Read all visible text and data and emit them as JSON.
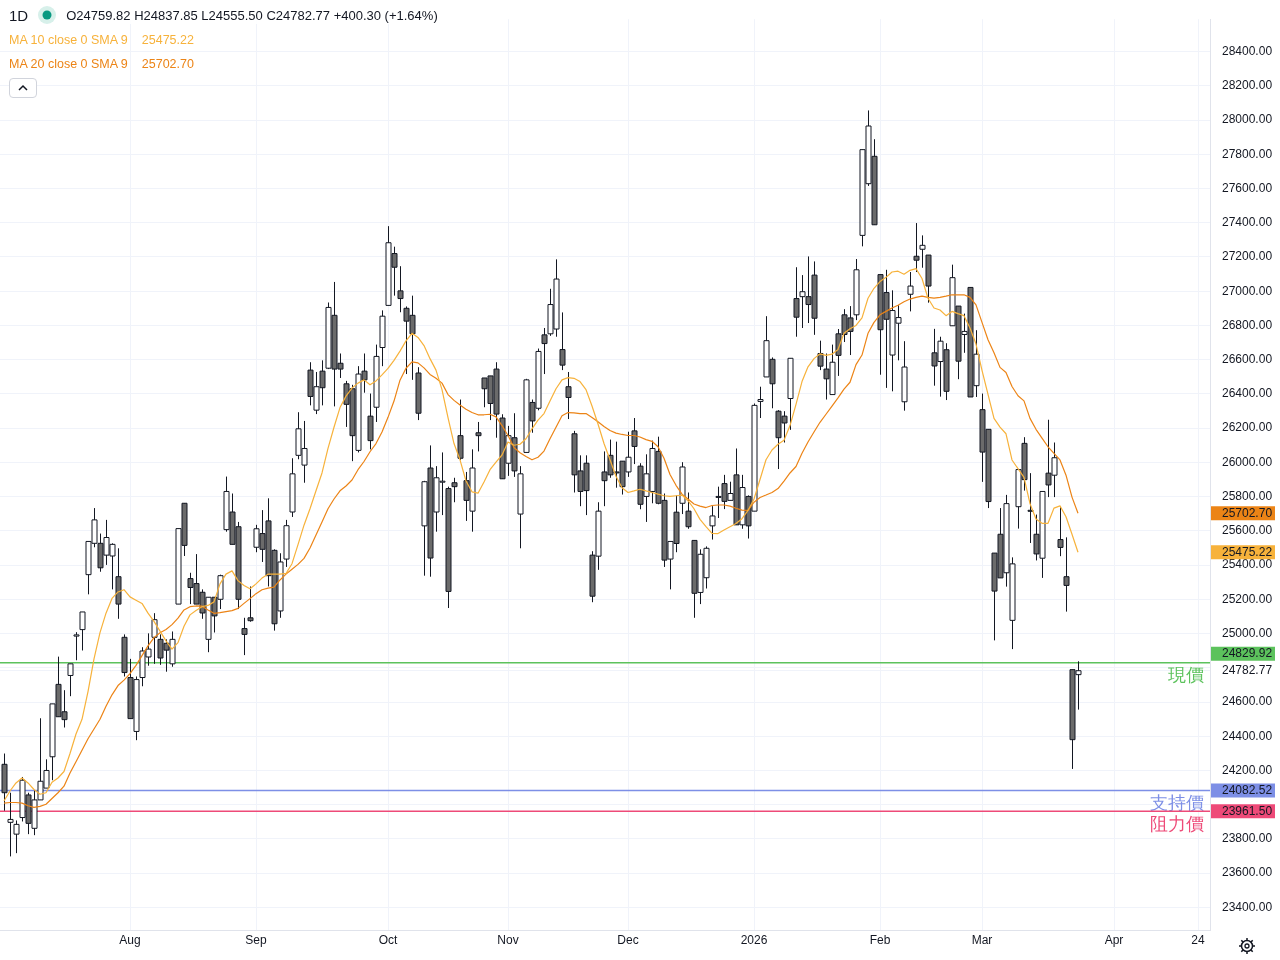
{
  "chart_data": {
    "type": "candlestick",
    "title": "1D",
    "subtitle": "O24759.82 H24837.85 L24555.50 C24782.77 +400.30 (+1.64%)",
    "categories": [
      null,
      null,
      null,
      null,
      null,
      null,
      null,
      null,
      null,
      null,
      null,
      null,
      null,
      null,
      null,
      null,
      null,
      null,
      null,
      null,
      null,
      "Aug",
      null,
      null,
      null,
      null,
      null,
      null,
      null,
      null,
      null,
      null,
      null,
      null,
      null,
      null,
      null,
      null,
      null,
      null,
      null,
      null,
      "Sep",
      null,
      null,
      null,
      null,
      null,
      null,
      null,
      null,
      null,
      null,
      null,
      null,
      null,
      null,
      null,
      null,
      null,
      null,
      null,
      null,
      null,
      "Oct",
      null,
      null,
      null,
      null,
      null,
      null,
      null,
      null,
      null,
      null,
      null,
      null,
      null,
      null,
      null,
      null,
      null,
      null,
      null,
      "Nov",
      null,
      null,
      null,
      null,
      null,
      null,
      null,
      null,
      null,
      null,
      null,
      null,
      null,
      null,
      null,
      null,
      null,
      null,
      null,
      "Dec",
      null,
      null,
      null,
      null,
      null,
      null,
      null,
      null,
      null,
      null,
      null,
      null,
      null,
      null,
      null,
      null,
      null,
      null,
      null,
      null,
      "2026",
      null,
      null,
      null,
      null,
      null,
      null,
      null,
      null,
      null,
      null,
      null,
      null,
      null,
      null,
      null,
      null,
      null,
      null,
      null,
      null,
      "Feb",
      null,
      null,
      null,
      null,
      null,
      null,
      null,
      null,
      null,
      null,
      null,
      null,
      null,
      null,
      null,
      null,
      "Mar",
      null,
      null,
      null,
      null,
      null,
      null,
      null,
      null,
      null,
      null,
      null,
      null,
      null,
      null,
      null,
      null,
      null,
      null,
      null,
      null,
      null,
      "Apr",
      null,
      null,
      null,
      null,
      null,
      null,
      null,
      null,
      null,
      null,
      null,
      null,
      null,
      "24",
      null,
      null
    ],
    "ohlc": [
      [
        24236,
        24299,
        23965,
        24070
      ],
      [
        23897,
        24070,
        23698,
        23914
      ],
      [
        23828,
        23908,
        23717,
        23885
      ],
      [
        23925,
        24162,
        23902,
        24143
      ],
      [
        24057,
        24070,
        23828,
        23891
      ],
      [
        23862,
        24085,
        23822,
        24028
      ],
      [
        24028,
        24505,
        24028,
        24137
      ],
      [
        24097,
        24265,
        24097,
        24200
      ],
      [
        24280,
        24589,
        24143,
        24589
      ],
      [
        24703,
        24865,
        24514,
        24514
      ],
      [
        24543,
        24669,
        24451,
        24497
      ],
      [
        24755,
        24823,
        24634,
        24823
      ],
      [
        24985,
        25008,
        24844,
        24992
      ],
      [
        25023,
        25126,
        24901,
        25126
      ],
      [
        25344,
        25538,
        25229,
        25538
      ],
      [
        25527,
        25733,
        25504,
        25664
      ],
      [
        25527,
        25584,
        25361,
        25384
      ],
      [
        25458,
        25664,
        25401,
        25561
      ],
      [
        25453,
        25527,
        25258,
        25521
      ],
      [
        25332,
        25498,
        25086,
        25172
      ],
      [
        24978,
        24995,
        24749,
        24772
      ],
      [
        24743,
        24852,
        24503,
        24503
      ],
      [
        24428,
        24749,
        24377,
        24731
      ],
      [
        24743,
        24920,
        24692,
        24898
      ],
      [
        24863,
        25001,
        24812,
        24909
      ],
      [
        24978,
        25119,
        24823,
        25081
      ],
      [
        24966,
        24995,
        24817,
        24857
      ],
      [
        24943,
        24966,
        24777,
        24903
      ],
      [
        24823,
        25012,
        24806,
        24966
      ],
      [
        25172,
        25613,
        25172,
        25613
      ],
      [
        25761,
        25761,
        25453,
        25515
      ],
      [
        25321,
        25355,
        25172,
        25269
      ],
      [
        25292,
        25464,
        25172,
        25172
      ],
      [
        25241,
        25258,
        25086,
        25120
      ],
      [
        24966,
        25212,
        24891,
        25212
      ],
      [
        25212,
        25212,
        25006,
        25103
      ],
      [
        25200,
        25344,
        25143,
        25338
      ],
      [
        25607,
        25917,
        25595,
        25830
      ],
      [
        25710,
        25818,
        25521,
        25521
      ],
      [
        25624,
        25652,
        25143,
        25200
      ],
      [
        25029,
        25092,
        24874,
        24995
      ],
      [
        25092,
        25275,
        25069,
        25075
      ],
      [
        25504,
        25635,
        25475,
        25612
      ],
      [
        25584,
        25721,
        25418,
        25492
      ],
      [
        25658,
        25790,
        25275,
        25338
      ],
      [
        25486,
        25492,
        25017,
        25057
      ],
      [
        25132,
        25469,
        25092,
        25418
      ],
      [
        25435,
        25664,
        25389,
        25630
      ],
      [
        25710,
        26024,
        25681,
        25933
      ],
      [
        26041,
        26293,
        26018,
        26196
      ],
      [
        25984,
        26242,
        25881,
        26081
      ],
      [
        26539,
        26585,
        26333,
        26385
      ],
      [
        26305,
        26528,
        26282,
        26442
      ],
      [
        26533,
        26596,
        26333,
        26436
      ],
      [
        26550,
        26934,
        26545,
        26905
      ],
      [
        26859,
        27054,
        26327,
        26545
      ],
      [
        26579,
        26636,
        26493,
        26545
      ],
      [
        26459,
        26476,
        26207,
        26339
      ],
      [
        26430,
        26453,
        26007,
        26156
      ],
      [
        26070,
        26562,
        26058,
        26516
      ],
      [
        26533,
        26636,
        26407,
        26482
      ],
      [
        26270,
        26402,
        26076,
        26127
      ],
      [
        26322,
        26688,
        26236,
        26619
      ],
      [
        26671,
        26888,
        26562,
        26854
      ],
      [
        26917,
        27380,
        26917,
        27283
      ],
      [
        27220,
        27260,
        26974,
        27140
      ],
      [
        27002,
        27146,
        26877,
        26957
      ],
      [
        26900,
        26911,
        26516,
        26825
      ],
      [
        26859,
        26974,
        26482,
        26751
      ],
      [
        26522,
        26556,
        26247,
        26287
      ],
      [
        25629,
        25892,
        25338,
        25887
      ],
      [
        25967,
        26099,
        25332,
        25441
      ],
      [
        25710,
        25978,
        25595,
        25910
      ],
      [
        25887,
        26058,
        25692,
        25890
      ],
      [
        25847,
        25858,
        25149,
        25246
      ],
      [
        25881,
        25910,
        25767,
        25858
      ],
      [
        26156,
        26367,
        26013,
        26024
      ],
      [
        25893,
        25944,
        25658,
        25778
      ],
      [
        25715,
        26076,
        25595,
        25967
      ],
      [
        26173,
        26236,
        26064,
        26156
      ],
      [
        26493,
        26493,
        26322,
        26430
      ],
      [
        26505,
        26505,
        26247,
        26344
      ],
      [
        26545,
        26585,
        26144,
        26282
      ],
      [
        26259,
        26281,
        25904,
        25904
      ],
      [
        25995,
        26213,
        25921,
        26156
      ],
      [
        26144,
        26287,
        25915,
        25950
      ],
      [
        25698,
        25978,
        25498,
        25933
      ],
      [
        26058,
        26488,
        26058,
        26482
      ],
      [
        26350,
        26367,
        26173,
        26242
      ],
      [
        26316,
        26665,
        26304,
        26648
      ],
      [
        26745,
        26785,
        26516,
        26694
      ],
      [
        26751,
        27014,
        26739,
        26922
      ],
      [
        26779,
        27186,
        26734,
        27071
      ],
      [
        26659,
        26876,
        26539,
        26568
      ],
      [
        26442,
        26528,
        26253,
        26379
      ],
      [
        26167,
        26184,
        25824,
        25927
      ],
      [
        25950,
        26041,
        25744,
        25830
      ],
      [
        25995,
        26041,
        25692,
        25835
      ],
      [
        25458,
        25481,
        25183,
        25218
      ],
      [
        25452,
        25767,
        25372,
        25715
      ],
      [
        25944,
        26064,
        25744,
        25893
      ],
      [
        26041,
        26133,
        25910,
        25927
      ],
      [
        25944,
        26121,
        25852,
        25942
      ],
      [
        26007,
        26007,
        25812,
        25858
      ],
      [
        25944,
        26179,
        25915,
        26030
      ],
      [
        26184,
        26259,
        25990,
        26093
      ],
      [
        25978,
        25995,
        25726,
        25755
      ],
      [
        25801,
        26047,
        25652,
        25933
      ],
      [
        25830,
        26127,
        25761,
        26081
      ],
      [
        26064,
        26150,
        25755,
        25761
      ],
      [
        25778,
        25818,
        25389,
        25429
      ],
      [
        25435,
        25538,
        25258,
        25538
      ],
      [
        25709,
        25807,
        25475,
        25526
      ],
      [
        25761,
        26001,
        25698,
        25973
      ],
      [
        25715,
        25824,
        25612,
        25624
      ],
      [
        25544,
        25544,
        25092,
        25235
      ],
      [
        25240,
        25492,
        25172,
        25463
      ],
      [
        25326,
        25509,
        25263,
        25498
      ],
      [
        25629,
        25744,
        25549,
        25687
      ],
      [
        25797,
        25858,
        25675,
        25801
      ],
      [
        25876,
        25927,
        25727,
        25772
      ],
      [
        25778,
        25887,
        25778,
        25818
      ],
      [
        25927,
        26081,
        25635,
        25635
      ],
      [
        25635,
        25927,
        25612,
        25853
      ],
      [
        25801,
        25807,
        25555,
        25629
      ],
      [
        25715,
        26344,
        25715,
        26333
      ],
      [
        26356,
        26442,
        26259,
        26367
      ],
      [
        26499,
        26854,
        26499,
        26711
      ],
      [
        26602,
        26613,
        26316,
        26459
      ],
      [
        26299,
        26305,
        25961,
        26144
      ],
      [
        26270,
        26299,
        26116,
        26230
      ],
      [
        26373,
        26608,
        26190,
        26608
      ],
      [
        26957,
        27140,
        26734,
        26848
      ],
      [
        26968,
        27094,
        26785,
        26997
      ],
      [
        26968,
        27203,
        26814,
        26922
      ],
      [
        27094,
        27174,
        26745,
        26842
      ],
      [
        26636,
        26711,
        26539,
        26562
      ],
      [
        26545,
        26636,
        26367,
        26488
      ],
      [
        26396,
        26688,
        26396,
        26585
      ],
      [
        26751,
        26779,
        26505,
        26625
      ],
      [
        26862,
        26895,
        26703,
        26747
      ],
      [
        26844,
        26913,
        26627,
        26765
      ],
      [
        26862,
        27188,
        26831,
        27125
      ],
      [
        27326,
        27827,
        27262,
        27827
      ],
      [
        27628,
        28056,
        27615,
        27965
      ],
      [
        27788,
        27888,
        27388,
        27388
      ],
      [
        27097,
        27097,
        26512,
        26775
      ],
      [
        26992,
        27125,
        26435,
        26836
      ],
      [
        26627,
        27005,
        26415,
        26887
      ],
      [
        26813,
        26918,
        26596,
        26846
      ],
      [
        26354,
        26708,
        26302,
        26557
      ],
      [
        26982,
        27112,
        26882,
        27030
      ],
      [
        27204,
        27398,
        27112,
        27181
      ],
      [
        27245,
        27326,
        27137,
        27268
      ],
      [
        27211,
        27211,
        26933,
        27030
      ],
      [
        26640,
        26780,
        26448,
        26563
      ],
      [
        26589,
        26734,
        26384,
        26708
      ],
      [
        26658,
        26696,
        26364,
        26415
      ],
      [
        26798,
        27155,
        26798,
        27079
      ],
      [
        26913,
        26913,
        26486,
        26591
      ],
      [
        26747,
        26869,
        26640,
        26765
      ],
      [
        27022,
        27022,
        26382,
        26382
      ],
      [
        26448,
        26772,
        26382,
        26632
      ],
      [
        26308,
        26402,
        25886,
        26060
      ],
      [
        26193,
        26193,
        25733,
        25771
      ],
      [
        25470,
        25470,
        24960,
        25248
      ],
      [
        25580,
        25733,
        25325,
        25325
      ],
      [
        25355,
        25810,
        25274,
        25759
      ],
      [
        25077,
        25445,
        24909,
        25407
      ],
      [
        25741,
        25958,
        25613,
        25958
      ],
      [
        26111,
        26147,
        25835,
        25899
      ],
      [
        25720,
        25937,
        25529,
        25718
      ],
      [
        25580,
        25695,
        25427,
        25465
      ],
      [
        25440,
        25830,
        25325,
        25830
      ],
      [
        25937,
        26249,
        25797,
        25868
      ],
      [
        25925,
        26116,
        25797,
        26027
      ],
      [
        25549,
        25738,
        25452,
        25503
      ],
      [
        25332,
        25562,
        25128,
        25281
      ],
      [
        24789,
        24789,
        24209,
        24380
      ],
      [
        24759.82,
        24837.85,
        24555.5,
        24782.77
      ],
      null,
      null,
      null,
      null,
      null,
      null,
      null,
      null,
      null,
      null,
      null,
      null,
      null,
      null,
      null,
      null,
      null,
      null,
      null,
      null,
      null,
      null
    ],
    "series": [
      {
        "name": "MA 10 close 0 SMA 9",
        "type": "line",
        "color": "#f7b23b",
        "values": [
          24022,
          24080,
          24127,
          24156,
          24127,
          24089,
          24061,
          24070,
          24131,
          24156,
          24194,
          24299,
          24413,
          24499,
          24661,
          24852,
          25005,
          25119,
          25205,
          25243,
          25256,
          25214,
          25195,
          25176,
          25119,
          25071,
          25014,
          24957,
          24909,
          24947,
          25043,
          25109,
          25134,
          25157,
          25164,
          25185,
          25290,
          25347,
          25366,
          25309,
          25281,
          25262,
          25290,
          25324,
          25347,
          25347,
          25347,
          25351,
          25408,
          25519,
          25633,
          25729,
          25834,
          25938,
          26082,
          26205,
          26320,
          26387,
          26434,
          26463,
          26482,
          26453,
          26476,
          26511,
          26549,
          26596,
          26650,
          26710,
          26754,
          26730,
          26682,
          26606,
          26539,
          26425,
          26262,
          26110,
          26015,
          25891,
          25828,
          25820,
          25885,
          25957,
          26001,
          26043,
          26119,
          26100,
          26106,
          26138,
          26196,
          26247,
          26285,
          26358,
          26430,
          26482,
          26495,
          26491,
          26472,
          26425,
          26329,
          26224,
          26110,
          26015,
          25919,
          25852,
          25824,
          25833,
          25843,
          25833,
          25824,
          25814,
          25805,
          25801,
          25805,
          25809,
          25776,
          25729,
          25667,
          25624,
          25585,
          25584,
          25605,
          25624,
          25643,
          25671,
          25719,
          25786,
          25900,
          26015,
          26072,
          26106,
          26129,
          26215,
          26339,
          26472,
          26558,
          26606,
          26634,
          26625,
          26632,
          26659,
          26754,
          26780,
          26800,
          26844,
          26959,
          27017,
          27056,
          27081,
          27112,
          27117,
          27099,
          27122,
          27132,
          27074,
          26959,
          26902,
          26890,
          26857,
          26882,
          26869,
          26857,
          26785,
          26691,
          26537,
          26397,
          26257,
          26206,
          26167,
          26014,
          25963,
          25912,
          25759,
          25669,
          25644,
          25644,
          25733,
          25746,
          25682,
          25580,
          25475.22,
          null,
          null,
          null,
          null,
          null,
          null,
          null,
          null,
          null,
          null,
          null,
          null,
          null,
          null,
          null,
          null,
          null,
          null,
          null,
          null,
          null,
          null
        ]
      },
      {
        "name": "MA 20 close 0 SMA 9",
        "type": "line",
        "color": "#ec8416",
        "values": [
          24009,
          24013,
          24013,
          24009,
          23994,
          23984,
          23990,
          24003,
          24036,
          24070,
          24108,
          24185,
          24251,
          24318,
          24385,
          24442,
          24499,
          24575,
          24642,
          24696,
          24728,
          24766,
          24814,
          24871,
          24928,
          24976,
          25005,
          25024,
          25052,
          25090,
          25138,
          25157,
          25161,
          25160,
          25137,
          25118,
          25122,
          25128,
          25134,
          25147,
          25176,
          25204,
          25233,
          25256,
          25265,
          25271,
          25313,
          25347,
          25376,
          25404,
          25439,
          25500,
          25576,
          25652,
          25729,
          25786,
          25834,
          25862,
          25897,
          25957,
          26005,
          26062,
          26110,
          26177,
          26263,
          26358,
          26480,
          26550,
          26587,
          26581,
          26552,
          26514,
          26491,
          26463,
          26396,
          26362,
          26335,
          26310,
          26291,
          26278,
          26278,
          26281,
          26266,
          26215,
          26157,
          26087,
          26056,
          26034,
          26015,
          26030,
          26066,
          26138,
          26205,
          26272,
          26291,
          26289,
          26285,
          26285,
          26262,
          26237,
          26209,
          26186,
          26171,
          26163,
          26157,
          26157,
          26148,
          26133,
          26123,
          26091,
          26024,
          25929,
          25866,
          25814,
          25786,
          25757,
          25744,
          25736,
          25748,
          25751,
          25751,
          25744,
          25732,
          25721,
          25719,
          25767,
          25795,
          25809,
          25824,
          25847,
          25891,
          25938,
          25976,
          26053,
          26119,
          26177,
          26234,
          26281,
          26329,
          26377,
          26428,
          26468,
          26571,
          26627,
          26754,
          26818,
          26862,
          26882,
          26902,
          26918,
          26938,
          26954,
          26964,
          26971,
          26964,
          26959,
          26964,
          26971,
          26979,
          26979,
          26979,
          26964,
          26920,
          26818,
          26716,
          26640,
          26555,
          26525,
          26443,
          26389,
          26359,
          26257,
          26193,
          26142,
          26091,
          26052,
          26014,
          25925,
          25797,
          25702.7,
          null,
          null,
          null,
          null,
          null,
          null,
          null,
          null,
          null,
          null,
          null,
          null,
          null,
          null,
          null,
          null,
          null,
          null,
          null,
          null,
          null,
          null
        ]
      }
    ],
    "ref_lines": [
      {
        "axis": "y",
        "value": 24829.92,
        "label": "現價",
        "color": "#5cc25c"
      },
      {
        "axis": "y",
        "value": 24082.52,
        "label": "支持價",
        "color": "#7d8fe6"
      },
      {
        "axis": "y",
        "value": 23961.5,
        "label": "阻力價",
        "color": "#ee4a78"
      }
    ],
    "annotations": [
      "25475.22",
      "25702.70",
      "25475.22",
      "25702.70",
      "24829.92",
      "24082.52",
      "23961.50"
    ],
    "ylim": [
      23268,
      28589
    ],
    "yticks": [
      {
        "value": 23400,
        "label": "23400.00"
      },
      {
        "value": 23600,
        "label": "23600.00"
      },
      {
        "value": 23800,
        "label": "23800.00"
      },
      {
        "value": 24000,
        "label": null
      },
      {
        "value": 24200,
        "label": "24200.00"
      },
      {
        "value": 24400,
        "label": "24400.00"
      },
      {
        "value": 24600,
        "label": "24600.00"
      },
      {
        "value": 24782.77,
        "label": "24782.77"
      },
      {
        "value": 24800,
        "label": null
      },
      {
        "value": 25000,
        "label": "25000.00"
      },
      {
        "value": 25200,
        "label": "25200.00"
      },
      {
        "value": 25400,
        "label": "25400.00"
      },
      {
        "value": 25600,
        "label": "25600.00"
      },
      {
        "value": 25800,
        "label": "25800.00"
      },
      {
        "value": 26000,
        "label": "26000.00"
      },
      {
        "value": 26200,
        "label": "26200.00"
      },
      {
        "value": 26400,
        "label": "26400.00"
      },
      {
        "value": 26600,
        "label": "26600.00"
      },
      {
        "value": 26800,
        "label": "26800.00"
      },
      {
        "value": 27000,
        "label": "27000.00"
      },
      {
        "value": 27200,
        "label": "27200.00"
      },
      {
        "value": 27400,
        "label": "27400.00"
      },
      {
        "value": 27600,
        "label": "27600.00"
      },
      {
        "value": 27800,
        "label": "27800.00"
      },
      {
        "value": 28000,
        "label": "28000.00"
      },
      {
        "value": 28200,
        "label": "28200.00"
      },
      {
        "value": 28400,
        "label": "28400.00"
      }
    ],
    "grid": true,
    "legend": "top left",
    "marker": "none"
  }
}
